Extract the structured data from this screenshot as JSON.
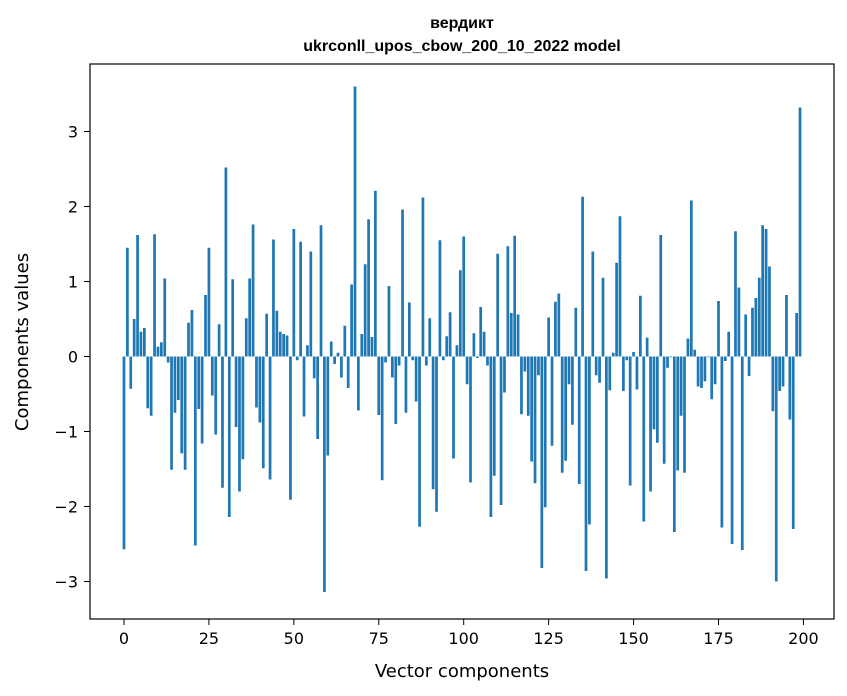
{
  "chart_data": {
    "type": "bar",
    "title": "вердикт",
    "subtitle": "ukrconll_upos_cbow_200_10_2022 model",
    "xlabel": "Vector components",
    "ylabel": "Components values",
    "xlim": [
      -10,
      209
    ],
    "ylim": [
      -3.5,
      3.9
    ],
    "xticks": [
      0,
      25,
      50,
      75,
      100,
      125,
      150,
      175,
      200
    ],
    "yticks": [
      -3,
      -2,
      -1,
      0,
      1,
      2,
      3
    ],
    "bar_color": "#1f77b4",
    "grid": false,
    "legend": "none",
    "x": [
      0,
      1,
      2,
      3,
      4,
      5,
      6,
      7,
      8,
      9,
      10,
      11,
      12,
      13,
      14,
      15,
      16,
      17,
      18,
      19,
      20,
      21,
      22,
      23,
      24,
      25,
      26,
      27,
      28,
      29,
      30,
      31,
      32,
      33,
      34,
      35,
      36,
      37,
      38,
      39,
      40,
      41,
      42,
      43,
      44,
      45,
      46,
      47,
      48,
      49,
      50,
      51,
      52,
      53,
      54,
      55,
      56,
      57,
      58,
      59,
      60,
      61,
      62,
      63,
      64,
      65,
      66,
      67,
      68,
      69,
      70,
      71,
      72,
      73,
      74,
      75,
      76,
      77,
      78,
      79,
      80,
      81,
      82,
      83,
      84,
      85,
      86,
      87,
      88,
      89,
      90,
      91,
      92,
      93,
      94,
      95,
      96,
      97,
      98,
      99,
      100,
      101,
      102,
      103,
      104,
      105,
      106,
      107,
      108,
      109,
      110,
      111,
      112,
      113,
      114,
      115,
      116,
      117,
      118,
      119,
      120,
      121,
      122,
      123,
      124,
      125,
      126,
      127,
      128,
      129,
      130,
      131,
      132,
      133,
      134,
      135,
      136,
      137,
      138,
      139,
      140,
      141,
      142,
      143,
      144,
      145,
      146,
      147,
      148,
      149,
      150,
      151,
      152,
      153,
      154,
      155,
      156,
      157,
      158,
      159,
      160,
      161,
      162,
      163,
      164,
      165,
      166,
      167,
      168,
      169,
      170,
      171,
      172,
      173,
      174,
      175,
      176,
      177,
      178,
      179,
      180,
      181,
      182,
      183,
      184,
      185,
      186,
      187,
      188,
      189,
      190,
      191,
      192,
      193,
      194,
      195,
      196,
      197,
      198,
      199
    ],
    "values": [
      -2.57,
      1.45,
      -0.43,
      0.5,
      1.62,
      0.33,
      0.38,
      -0.69,
      -0.79,
      1.63,
      0.13,
      0.19,
      1.04,
      -0.08,
      -1.51,
      -0.75,
      -0.58,
      -1.29,
      -1.51,
      0.45,
      0.62,
      -2.52,
      -0.7,
      -1.16,
      0.82,
      1.45,
      -0.52,
      -1.04,
      0.43,
      -1.75,
      2.52,
      -2.14,
      1.03,
      -0.94,
      -1.8,
      -1.37,
      0.51,
      1.04,
      1.76,
      -0.68,
      -0.88,
      -1.49,
      0.57,
      -1.64,
      1.56,
      0.61,
      0.33,
      0.3,
      0.28,
      -1.91,
      1.7,
      -0.05,
      1.53,
      -0.8,
      0.15,
      1.4,
      -0.29,
      -1.1,
      1.75,
      -3.14,
      -1.32,
      0.2,
      -0.1,
      0.05,
      -0.28,
      0.41,
      -0.42,
      0.96,
      3.6,
      -0.72,
      0.3,
      1.23,
      1.83,
      0.26,
      2.21,
      -0.78,
      -1.65,
      -0.08,
      0.94,
      -0.28,
      -0.9,
      -0.12,
      1.96,
      -0.75,
      0.72,
      -0.05,
      -0.6,
      -2.27,
      2.12,
      -0.12,
      0.51,
      -1.77,
      -2.07,
      1.55,
      -0.05,
      0.27,
      0.59,
      -1.36,
      0.15,
      1.15,
      1.6,
      -0.37,
      -1.68,
      0.31,
      -0.02,
      0.66,
      0.33,
      -0.12,
      -2.14,
      -1.59,
      1.37,
      -1.98,
      -0.48,
      1.47,
      0.58,
      1.61,
      0.56,
      -0.77,
      -0.2,
      -0.79,
      -1.4,
      -1.69,
      -0.25,
      -2.82,
      -2.01,
      0.52,
      -1.19,
      0.73,
      0.84,
      -1.55,
      -1.39,
      -0.37,
      -0.91,
      0.65,
      -1.7,
      2.13,
      -2.86,
      -2.24,
      1.4,
      -0.25,
      -0.35,
      1.05,
      -2.96,
      -0.45,
      0.05,
      1.25,
      1.87,
      -0.46,
      -0.05,
      -1.72,
      0.06,
      -0.44,
      0.81,
      -2.2,
      0.25,
      -1.8,
      -0.97,
      -1.15,
      1.62,
      -1.43,
      -0.15,
      -0.01,
      -2.34,
      -1.52,
      -0.79,
      -1.55,
      0.24,
      2.08,
      0.09,
      -0.4,
      -0.42,
      -0.33,
      -0.01,
      -0.57,
      -0.37,
      0.74,
      -2.28,
      -0.06,
      0.33,
      -2.5,
      1.67,
      0.92,
      -2.58,
      0.56,
      -0.26,
      0.65,
      0.78,
      1.05,
      1.75,
      1.7,
      1.2,
      -0.73,
      -3.0,
      -0.46,
      -0.4,
      0.82,
      -0.84,
      -2.3,
      0.58,
      3.32
    ]
  }
}
